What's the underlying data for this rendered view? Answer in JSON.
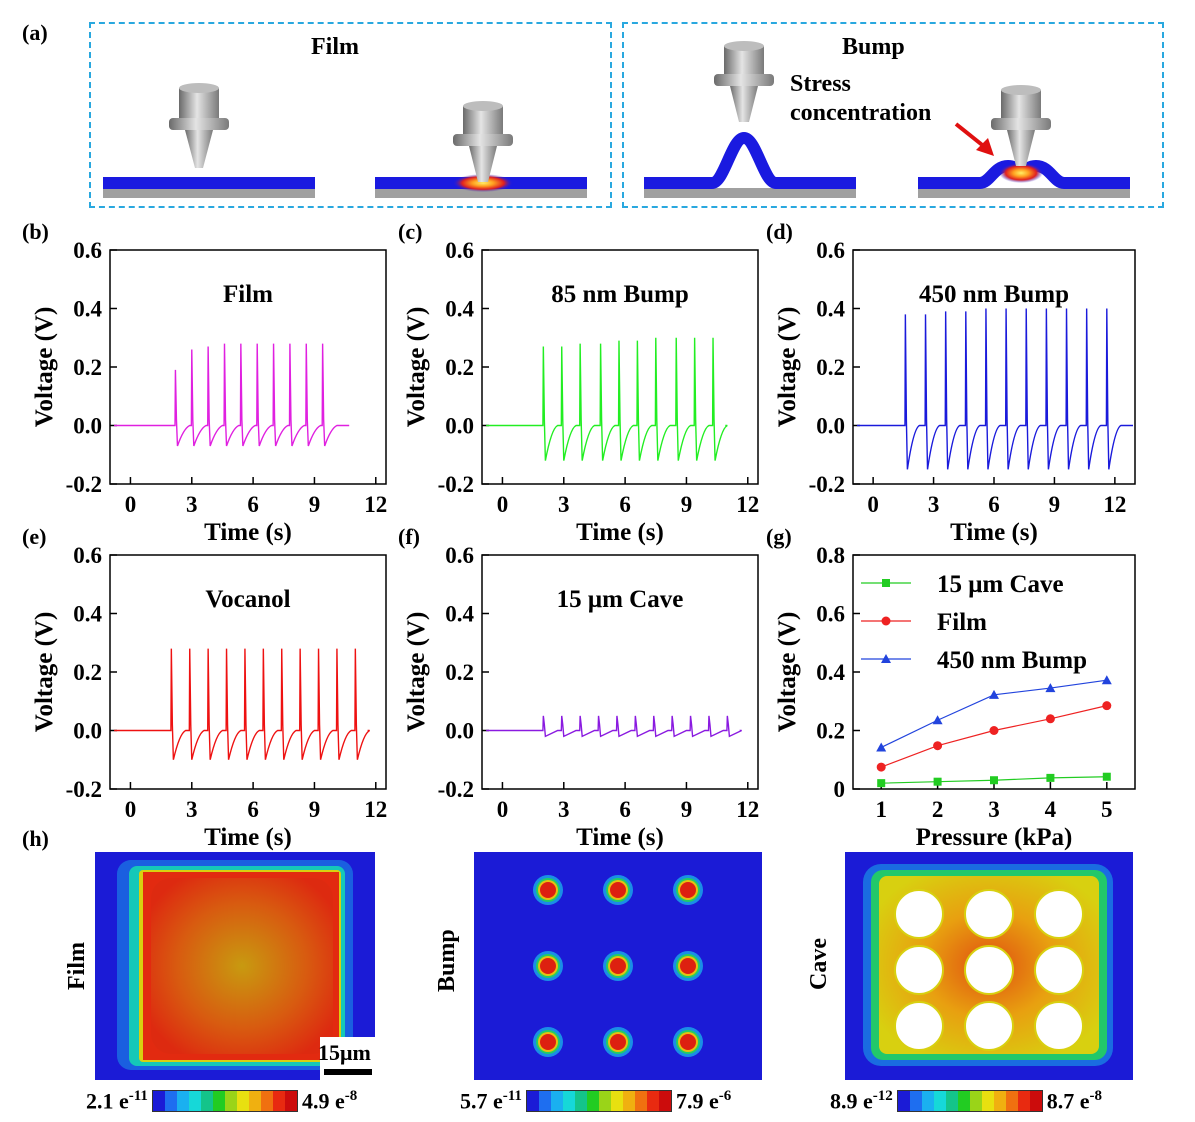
{
  "panel_a": {
    "label": "(a)",
    "film_title": "Film",
    "bump_title": "Bump",
    "annotation": "Stress\nconcentration",
    "annotation_line1": "Stress",
    "annotation_line2": "concentration"
  },
  "chart_data": [
    {
      "id": "b",
      "label": "(b)",
      "type": "line",
      "title": "Film",
      "xlabel": "Time (s)",
      "ylabel": "Voltage (V)",
      "xlim": [
        -1,
        12.5
      ],
      "ylim": [
        -0.2,
        0.6
      ],
      "xticks": [
        "0",
        "3",
        "6",
        "9",
        "12"
      ],
      "yticks": [
        "-0.2",
        "0.0",
        "0.2",
        "0.4",
        "0.6"
      ],
      "color": "#e020e0",
      "series": [
        {
          "peaks_x": [
            2.2,
            3.0,
            3.8,
            4.6,
            5.4,
            6.2,
            7.0,
            7.8,
            8.6,
            9.4
          ],
          "peaks_y": [
            0.19,
            0.26,
            0.27,
            0.28,
            0.28,
            0.28,
            0.28,
            0.28,
            0.28,
            0.28
          ],
          "trough_y": -0.07,
          "start": 2.0,
          "end": 10.4
        }
      ]
    },
    {
      "id": "c",
      "label": "(c)",
      "type": "line",
      "title": "85 nm Bump",
      "xlabel": "Time (s)",
      "ylabel": "Voltage (V)",
      "xlim": [
        -1,
        12.5
      ],
      "ylim": [
        -0.2,
        0.6
      ],
      "xticks": [
        "0",
        "3",
        "6",
        "9",
        "12"
      ],
      "yticks": [
        "-0.2",
        "0.0",
        "0.2",
        "0.4",
        "0.6"
      ],
      "color": "#22ee22",
      "series": [
        {
          "peaks_x": [
            2.0,
            2.9,
            3.8,
            4.8,
            5.7,
            6.6,
            7.5,
            8.5,
            9.4,
            10.3
          ],
          "peaks_y": [
            0.27,
            0.27,
            0.28,
            0.28,
            0.29,
            0.29,
            0.3,
            0.3,
            0.3,
            0.3
          ],
          "trough_y": -0.12,
          "start": 1.8,
          "end": 10.6
        }
      ]
    },
    {
      "id": "d",
      "label": "(d)",
      "type": "line",
      "title": "450 nm Bump",
      "xlabel": "Time (s)",
      "ylabel": "Voltage (V)",
      "xlim": [
        -1,
        13
      ],
      "ylim": [
        -0.2,
        0.6
      ],
      "xticks": [
        "0",
        "3",
        "6",
        "9",
        "12"
      ],
      "yticks": [
        "-0.2",
        "0.0",
        "0.2",
        "0.4",
        "0.6"
      ],
      "color": "#1a1adb",
      "series": [
        {
          "peaks_x": [
            1.6,
            2.6,
            3.6,
            4.6,
            5.6,
            6.6,
            7.6,
            8.6,
            9.6,
            10.6,
            11.6
          ],
          "peaks_y": [
            0.38,
            0.38,
            0.39,
            0.39,
            0.4,
            0.4,
            0.4,
            0.4,
            0.4,
            0.4,
            0.4
          ],
          "trough_y": -0.15,
          "start": 1.4,
          "end": 13
        }
      ]
    },
    {
      "id": "e",
      "label": "(e)",
      "type": "line",
      "title": "Vocanol",
      "xlabel": "Time (s)",
      "ylabel": "Voltage (V)",
      "xlim": [
        -1,
        12.5
      ],
      "ylim": [
        -0.2,
        0.6
      ],
      "xticks": [
        "0",
        "3",
        "6",
        "9",
        "12"
      ],
      "yticks": [
        "-0.2",
        "0.0",
        "0.2",
        "0.4",
        "0.6"
      ],
      "color": "#ee1111",
      "series": [
        {
          "peaks_x": [
            2.0,
            2.9,
            3.8,
            4.7,
            5.6,
            6.5,
            7.4,
            8.3,
            9.2,
            10.1,
            11.0
          ],
          "peaks_y": [
            0.28,
            0.28,
            0.28,
            0.28,
            0.28,
            0.28,
            0.28,
            0.28,
            0.28,
            0.28,
            0.28
          ],
          "trough_y": -0.1,
          "start": 1.8,
          "end": 11.3
        }
      ]
    },
    {
      "id": "f",
      "label": "(f)",
      "type": "line",
      "title": "15 μm Cave",
      "xlabel": "Time (s)",
      "ylabel": "Voltage (V)",
      "xlim": [
        -1,
        12.5
      ],
      "ylim": [
        -0.2,
        0.6
      ],
      "xticks": [
        "0",
        "3",
        "6",
        "9",
        "12"
      ],
      "yticks": [
        "-0.2",
        "0.0",
        "0.2",
        "0.4",
        "0.6"
      ],
      "color": "#8a1ae0",
      "series": [
        {
          "peaks_x": [
            2.0,
            2.9,
            3.8,
            4.7,
            5.6,
            6.5,
            7.4,
            8.3,
            9.2,
            10.1,
            11.0
          ],
          "peaks_y": [
            0.05,
            0.05,
            0.05,
            0.05,
            0.05,
            0.05,
            0.05,
            0.05,
            0.05,
            0.05,
            0.05
          ],
          "trough_y": -0.02,
          "start": 1.8,
          "end": 11.3
        }
      ]
    },
    {
      "id": "g",
      "label": "(g)",
      "type": "line",
      "title": "",
      "xlabel": "Pressure (kPa)",
      "ylabel": "Voltage (V)",
      "xlim": [
        0.5,
        5.5
      ],
      "ylim": [
        0,
        0.8
      ],
      "xticks": [
        "1",
        "2",
        "3",
        "4",
        "5"
      ],
      "yticks": [
        "0",
        "0.2",
        "0.4",
        "0.6",
        "0.8"
      ],
      "x": [
        1,
        2,
        3,
        4,
        5
      ],
      "legend_position": "top-left",
      "series": [
        {
          "name": "15 μm Cave",
          "values": [
            0.02,
            0.025,
            0.03,
            0.038,
            0.042
          ],
          "color": "#22cc22",
          "marker": "square"
        },
        {
          "name": "Film",
          "values": [
            0.075,
            0.148,
            0.2,
            0.24,
            0.285
          ],
          "color": "#ee2222",
          "marker": "circle"
        },
        {
          "name": "450 nm Bump",
          "values": [
            0.142,
            0.235,
            0.322,
            0.345,
            0.372
          ],
          "color": "#2244dd",
          "marker": "triangle"
        }
      ]
    }
  ],
  "panel_h": {
    "label": "(h)",
    "maps": [
      {
        "side": "Film",
        "min": "2.1 e",
        "min_exp": "-11",
        "max": "4.9 e",
        "max_exp": "-8",
        "scale": "15μm"
      },
      {
        "side": "Bump",
        "min": "5.7 e",
        "min_exp": "-11",
        "max": "7.9 e",
        "max_exp": "-6"
      },
      {
        "side": "Cave",
        "min": "8.9 e",
        "min_exp": "-12",
        "max": "8.7 e",
        "max_exp": "-8"
      }
    ],
    "colormap": [
      "#1b1bd6",
      "#1e6ef0",
      "#1ab0f0",
      "#16d8d8",
      "#14c48a",
      "#22cc22",
      "#9ad418",
      "#e8e010",
      "#f0b010",
      "#f07010",
      "#e82a10",
      "#cc0c0c"
    ]
  }
}
